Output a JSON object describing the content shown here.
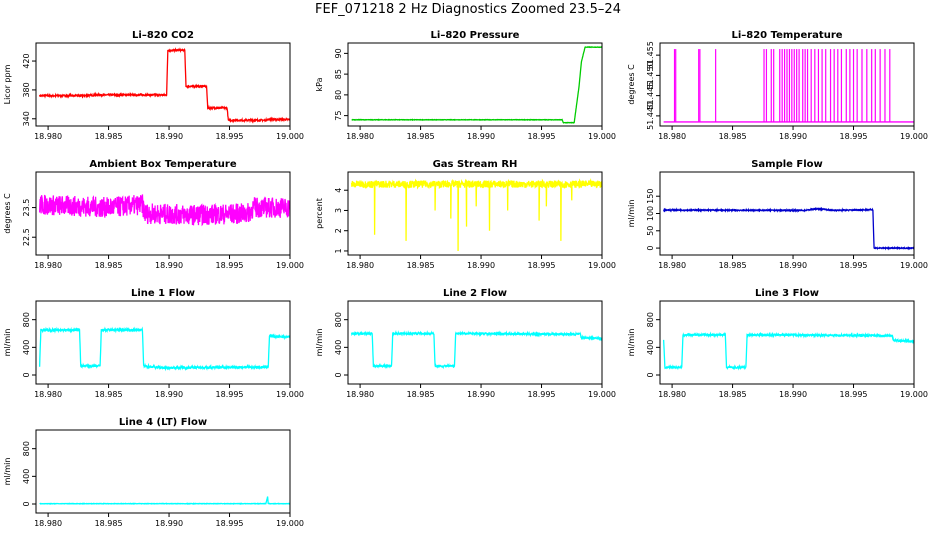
{
  "figure": {
    "title": "FEF_071218  2 Hz Diagnostics Zoomed 23.5–24"
  },
  "chart_data": [
    {
      "id": "co2",
      "type": "line",
      "title": "Li–820 CO2",
      "ylabel": "Licor ppm",
      "xlabel": "",
      "color": "#ff0000",
      "xlim": [
        18.979,
        19.0
      ],
      "ylim": [
        330,
        445
      ],
      "xticks": [
        18.98,
        18.985,
        18.99,
        18.995,
        19.0
      ],
      "xtick_labels": [
        "18.980",
        "18.985",
        "18.990",
        "18.995",
        "19.000"
      ],
      "yticks": [
        340,
        380,
        420
      ],
      "ytick_labels": [
        "340",
        "380",
        "420"
      ],
      "noise": 1.2,
      "series": [
        {
          "x": [
            18.9793,
            18.983,
            18.984,
            18.9898,
            18.9899,
            18.9913,
            18.9914,
            18.9931,
            18.9932,
            18.9948,
            18.9949,
            18.998,
            18.9981,
            19.0
          ],
          "y": [
            372,
            372,
            373,
            373,
            435,
            435,
            385,
            385,
            355,
            355,
            338,
            338,
            339,
            339
          ]
        }
      ]
    },
    {
      "id": "pressure",
      "type": "line",
      "title": "Li–820 Pressure",
      "ylabel": "kPa",
      "xlabel": "",
      "color": "#00cc00",
      "xlim": [
        18.979,
        19.0
      ],
      "ylim": [
        72.5,
        92.5
      ],
      "xticks": [
        18.98,
        18.985,
        18.99,
        18.995,
        19.0
      ],
      "xtick_labels": [
        "18.980",
        "18.985",
        "18.990",
        "18.995",
        "19.000"
      ],
      "yticks": [
        75,
        80,
        85,
        90
      ],
      "ytick_labels": [
        "75",
        "80",
        "85",
        "90"
      ],
      "noise": 0.05,
      "series": [
        {
          "x": [
            18.9793,
            18.9967,
            18.9968,
            18.9977,
            18.9981,
            18.9983,
            18.9986,
            19.0
          ],
          "y": [
            74,
            74,
            73.3,
            73.3,
            82,
            88,
            91.5,
            91.5
          ]
        }
      ]
    },
    {
      "id": "temperature",
      "type": "line",
      "title": "Li–820 Temperature",
      "ylabel": "degrees C",
      "xlabel": "",
      "color": "#ff00ff",
      "xlim": [
        18.979,
        19.0
      ],
      "ylim": [
        51.4375,
        51.458
      ],
      "xticks": [
        18.98,
        18.985,
        18.99,
        18.995,
        19.0
      ],
      "xtick_labels": [
        "18.980",
        "18.985",
        "18.990",
        "18.995",
        "19.000"
      ],
      "yticks": [
        51.44,
        51.445,
        51.45,
        51.455
      ],
      "ytick_labels": [
        "51.440",
        "51.445",
        "51.450",
        "51.455"
      ],
      "noise": 0,
      "spikes": {
        "base": 51.4385,
        "top": 51.4565,
        "x": [
          18.9802,
          18.9803,
          18.9822,
          18.9823,
          18.9836,
          18.9876,
          18.9878,
          18.9882,
          18.9884,
          18.9889,
          18.9891,
          18.9893,
          18.9895,
          18.9897,
          18.9899,
          18.9901,
          18.9903,
          18.9905,
          18.9908,
          18.991,
          18.9912,
          18.9915,
          18.9918,
          18.9921,
          18.9924,
          18.9927,
          18.9931,
          18.9934,
          18.9937,
          18.994,
          18.9944,
          18.9947,
          18.995,
          18.9953,
          18.9957,
          18.9961,
          18.9965,
          18.9968,
          18.9972,
          18.9976,
          18.998
        ]
      },
      "series": [
        {
          "x": [
            18.9793,
            19.0
          ],
          "y": [
            51.4385,
            51.4385
          ]
        }
      ]
    },
    {
      "id": "ambient",
      "type": "line",
      "title": "Ambient Box Temperature",
      "ylabel": "degrees C",
      "xlabel": "",
      "color": "#ff00ff",
      "xlim": [
        18.979,
        19.0
      ],
      "ylim": [
        21.9,
        24.7
      ],
      "xticks": [
        18.98,
        18.985,
        18.99,
        18.995,
        19.0
      ],
      "xtick_labels": [
        "18.980",
        "18.985",
        "18.990",
        "18.995",
        "19.000"
      ],
      "yticks": [
        22.5,
        23.5
      ],
      "ytick_labels": [
        "22.5",
        "23.5"
      ],
      "noise": 0.35,
      "series": [
        {
          "x": [
            18.9793,
            18.985,
            18.9878,
            18.988,
            18.992,
            18.9965,
            18.997,
            19.0
          ],
          "y": [
            23.6,
            23.5,
            23.6,
            23.3,
            23.25,
            23.3,
            23.5,
            23.5
          ]
        }
      ]
    },
    {
      "id": "rh",
      "type": "line",
      "title": "Gas Stream RH",
      "ylabel": "percent",
      "xlabel": "",
      "color": "#ffff00",
      "xlim": [
        18.979,
        19.0
      ],
      "ylim": [
        0.8,
        4.9
      ],
      "xticks": [
        18.98,
        18.985,
        18.99,
        18.995,
        19.0
      ],
      "xtick_labels": [
        "18.980",
        "18.985",
        "18.990",
        "18.995",
        "19.000"
      ],
      "yticks": [
        1,
        2,
        3,
        4
      ],
      "ytick_labels": [
        "1",
        "2",
        "3",
        "4"
      ],
      "noise": 0.18,
      "dips": {
        "x": [
          18.9812,
          18.9838,
          18.9862,
          18.9875,
          18.9881,
          18.9888,
          18.9896,
          18.9907,
          18.9922,
          18.9948,
          18.9954,
          18.9966,
          18.9975
        ],
        "y": [
          1.8,
          1.5,
          3.0,
          2.6,
          1.0,
          2.2,
          3.2,
          2.0,
          3.0,
          2.5,
          3.2,
          1.5,
          3.5
        ]
      },
      "series": [
        {
          "x": [
            18.9793,
            19.0
          ],
          "y": [
            4.3,
            4.3
          ]
        }
      ]
    },
    {
      "id": "sample",
      "type": "line",
      "title": "Sample Flow",
      "ylabel": "ml/min",
      "xlabel": "",
      "color": "#0000cc",
      "xlim": [
        18.979,
        19.0
      ],
      "ylim": [
        -20,
        220
      ],
      "xticks": [
        18.98,
        18.985,
        18.99,
        18.995,
        19.0
      ],
      "xtick_labels": [
        "18.980",
        "18.985",
        "18.990",
        "18.995",
        "19.000"
      ],
      "yticks": [
        0,
        50,
        100,
        150
      ],
      "ytick_labels": [
        "0",
        "50",
        "100",
        "150"
      ],
      "noise": 1.5,
      "series": [
        {
          "x": [
            18.9793,
            18.991,
            18.9918,
            18.9925,
            18.9932,
            18.9966,
            18.9967,
            19.0
          ],
          "y": [
            110,
            109,
            113,
            113,
            109,
            111,
            0,
            0
          ]
        }
      ]
    },
    {
      "id": "line1",
      "type": "line",
      "title": "Line 1 Flow",
      "ylabel": "ml/min",
      "xlabel": "",
      "color": "#00ffff",
      "xlim": [
        18.979,
        19.0
      ],
      "ylim": [
        -130,
        1070
      ],
      "xticks": [
        18.98,
        18.985,
        18.99,
        18.995,
        19.0
      ],
      "xtick_labels": [
        "18.980",
        "18.985",
        "18.990",
        "18.995",
        "19.000"
      ],
      "yticks": [
        0,
        400,
        800
      ],
      "ytick_labels": [
        "0",
        "400",
        "800"
      ],
      "noise": 18,
      "series": [
        {
          "x": [
            18.9793,
            18.9794,
            18.9826,
            18.9827,
            18.9843,
            18.9844,
            18.9878,
            18.9879,
            18.9895,
            18.9982,
            18.9983,
            19.0
          ],
          "y": [
            130,
            650,
            650,
            130,
            130,
            650,
            650,
            130,
            105,
            115,
            560,
            550
          ]
        }
      ]
    },
    {
      "id": "line2",
      "type": "line",
      "title": "Line 2 Flow",
      "ylabel": "ml/min",
      "xlabel": "",
      "color": "#00ffff",
      "xlim": [
        18.979,
        19.0
      ],
      "ylim": [
        -130,
        1070
      ],
      "xticks": [
        18.98,
        18.985,
        18.99,
        18.995,
        19.0
      ],
      "xtick_labels": [
        "18.980",
        "18.985",
        "18.990",
        "18.995",
        "19.000"
      ],
      "yticks": [
        0,
        400,
        800
      ],
      "ytick_labels": [
        "0",
        "400",
        "800"
      ],
      "noise": 15,
      "series": [
        {
          "x": [
            18.9793,
            18.981,
            18.9811,
            18.9826,
            18.9827,
            18.9861,
            18.9862,
            18.9878,
            18.9879,
            18.9982,
            18.9983,
            19.0
          ],
          "y": [
            600,
            600,
            130,
            130,
            600,
            600,
            130,
            130,
            600,
            590,
            540,
            530
          ]
        }
      ]
    },
    {
      "id": "line3",
      "type": "line",
      "title": "Line 3 Flow",
      "ylabel": "ml/min",
      "xlabel": "",
      "color": "#00ffff",
      "xlim": [
        18.979,
        19.0
      ],
      "ylim": [
        -130,
        1070
      ],
      "xticks": [
        18.98,
        18.985,
        18.99,
        18.995,
        19.0
      ],
      "xtick_labels": [
        "18.980",
        "18.985",
        "18.990",
        "18.995",
        "19.000"
      ],
      "yticks": [
        0,
        400,
        800
      ],
      "ytick_labels": [
        "0",
        "400",
        "800"
      ],
      "noise": 14,
      "series": [
        {
          "x": [
            18.9793,
            18.9794,
            18.9808,
            18.9809,
            18.9844,
            18.9845,
            18.9861,
            18.9862,
            18.9982,
            18.9983,
            19.0
          ],
          "y": [
            520,
            110,
            110,
            580,
            580,
            110,
            110,
            580,
            570,
            500,
            490
          ]
        }
      ]
    },
    {
      "id": "line4",
      "type": "line",
      "title": "Line 4 (LT) Flow",
      "ylabel": "ml/min",
      "xlabel": "",
      "color": "#00ffff",
      "xlim": [
        18.979,
        19.0
      ],
      "ylim": [
        -130,
        1070
      ],
      "xticks": [
        18.98,
        18.985,
        18.99,
        18.995,
        19.0
      ],
      "xtick_labels": [
        "18.980",
        "18.985",
        "18.990",
        "18.995",
        "19.000"
      ],
      "yticks": [
        0,
        400,
        800
      ],
      "ytick_labels": [
        "0",
        "400",
        "800"
      ],
      "noise": 3,
      "series": [
        {
          "x": [
            18.9793,
            18.998,
            18.9981,
            18.99815,
            18.9982,
            19.0
          ],
          "y": [
            5,
            5,
            70,
            110,
            5,
            5
          ]
        }
      ]
    }
  ]
}
